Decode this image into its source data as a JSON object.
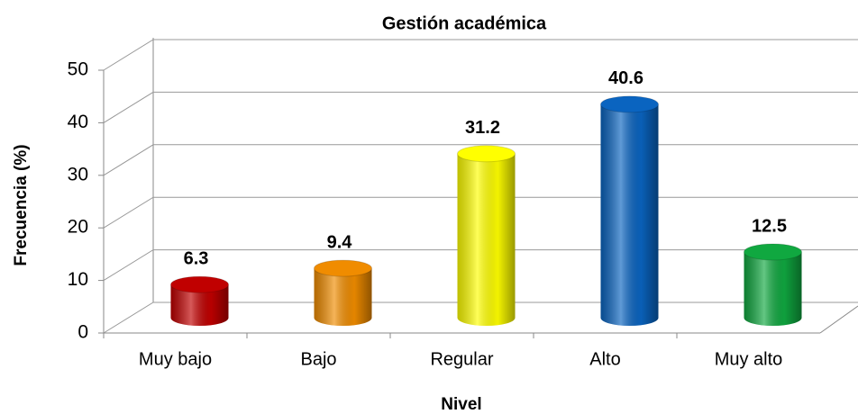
{
  "chart_data": {
    "type": "bar",
    "title": "Gestión académica",
    "x_label": "Nivel",
    "y_label": "Frecuencia (%)",
    "categories": [
      "Muy bajo",
      "Bajo",
      "Regular",
      "Alto",
      "Muy alto"
    ],
    "values": [
      6.3,
      9.4,
      31.2,
      40.6,
      12.5
    ],
    "colors": [
      "#c00000",
      "#f08c00",
      "#ffff00",
      "#0a64c0",
      "#10a840"
    ],
    "ylim": [
      0,
      50
    ],
    "yticks": [
      0,
      10,
      20,
      30,
      40,
      50
    ],
    "grid": true
  }
}
